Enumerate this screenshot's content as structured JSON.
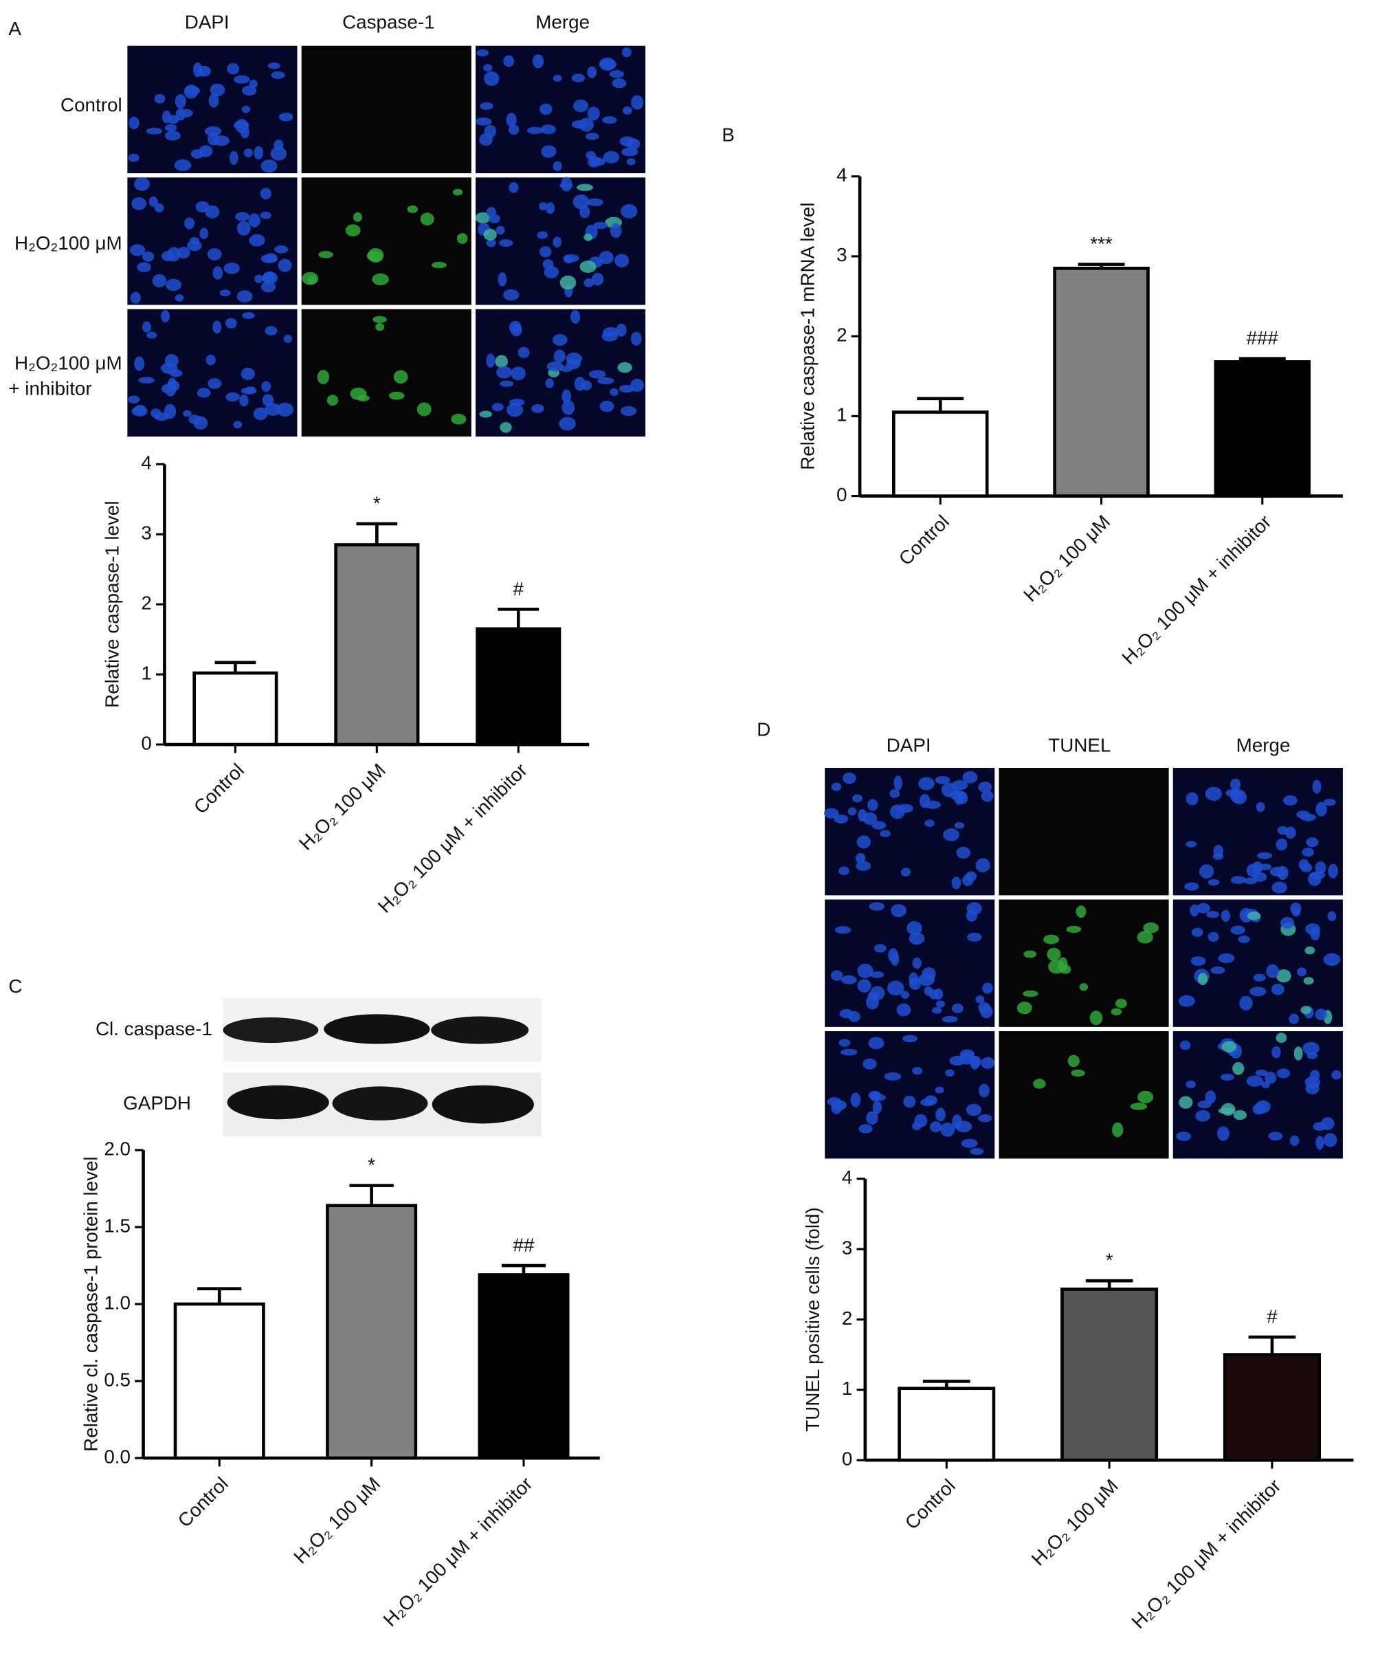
{
  "figure": {
    "panel_a": {
      "label": "A",
      "columns": [
        "DAPI",
        "Caspase-1",
        "Merge"
      ],
      "rows": [
        [
          "Control"
        ],
        [
          "H₂O₂100 μM"
        ],
        [
          "H₂O₂100 μM",
          "+ inhibitor"
        ]
      ]
    },
    "panel_b": {
      "label": "B"
    },
    "panel_c": {
      "label": "C",
      "blots": [
        "Cl. caspase-1",
        "GAPDH"
      ]
    },
    "panel_d": {
      "label": "D",
      "columns": [
        "DAPI",
        "TUNEL",
        "Merge"
      ]
    }
  },
  "chart_data": [
    {
      "type": "bar",
      "y_label": "Relative caspase-1 level",
      "categories": [
        "Control",
        "H₂O₂ 100 μM",
        "H₂O₂ 100 μM + inhibitor"
      ],
      "values": [
        1.02,
        2.85,
        1.65
      ],
      "errors": [
        0.15,
        0.3,
        0.28
      ],
      "annotations": [
        null,
        "*",
        "#"
      ],
      "colors": [
        "#ffffff",
        "#808080",
        "#000000"
      ],
      "ylim": [
        0,
        4
      ],
      "yticks": [
        0,
        1,
        2,
        3,
        4
      ]
    },
    {
      "type": "bar",
      "y_label": "Relative caspase-1 mRNA level",
      "categories": [
        "Control",
        "H₂O₂ 100 μM",
        "H₂O₂ 100 μM + inhibitor"
      ],
      "values": [
        1.05,
        2.85,
        1.68
      ],
      "errors": [
        0.17,
        0.05,
        0.04
      ],
      "annotations": [
        null,
        "***",
        "###"
      ],
      "colors": [
        "#ffffff",
        "#808080",
        "#000000"
      ],
      "ylim": [
        0,
        4
      ],
      "yticks": [
        0,
        1,
        2,
        3,
        4
      ]
    },
    {
      "type": "bar",
      "y_label": "Relative cl. caspase-1 protein level",
      "categories": [
        "Control",
        "H₂O₂ 100 μM",
        "H₂O₂ 100 μM + inhibitor"
      ],
      "values": [
        1.0,
        1.64,
        1.19
      ],
      "errors": [
        0.1,
        0.13,
        0.06
      ],
      "annotations": [
        null,
        "*",
        "##"
      ],
      "colors": [
        "#ffffff",
        "#808080",
        "#000000"
      ],
      "ylim": [
        0,
        2
      ],
      "yticks": [
        {
          "value": 0,
          "label": "0.0"
        },
        0.5,
        {
          "value": 1,
          "label": "1.0"
        },
        1.5,
        {
          "value": 2,
          "label": "2.0"
        }
      ]
    },
    {
      "type": "bar",
      "y_label": "TUNEL positive cells (fold)",
      "categories": [
        "Control",
        "H₂O₂ 100 μM",
        "H₂O₂ 100 μM + inhibitor"
      ],
      "values": [
        1.02,
        2.43,
        1.5
      ],
      "errors": [
        0.1,
        0.12,
        0.25
      ],
      "annotations": [
        null,
        "*",
        "#"
      ],
      "colors": [
        "#ffffff",
        "#555555",
        "#1a0a0a"
      ],
      "ylim": [
        0,
        4
      ],
      "yticks": [
        0,
        1,
        2,
        3,
        4
      ]
    }
  ]
}
